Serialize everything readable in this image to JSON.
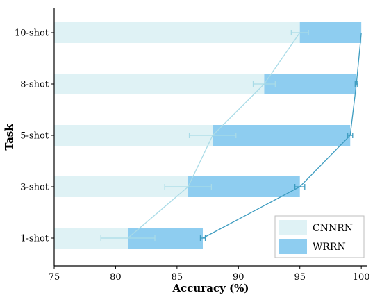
{
  "chart_data": {
    "type": "bar",
    "orientation": "horizontal",
    "xlabel": "Accuracy (%)",
    "ylabel": "Task",
    "xlim": [
      75,
      100.5
    ],
    "xticks": [
      "75",
      "80",
      "85",
      "90",
      "95",
      "100"
    ],
    "categories": [
      "1-shot",
      "3-shot",
      "5-shot",
      "8-shot",
      "10-shot"
    ],
    "series": [
      {
        "name": "CNNRN",
        "color": "#dff2f5",
        "line_color": "#a9dbe7",
        "values": [
          81.0,
          85.9,
          87.9,
          92.1,
          95.0
        ],
        "error": [
          2.2,
          1.9,
          1.9,
          0.9,
          0.7
        ]
      },
      {
        "name": "WRRN",
        "color": "#8ecdf0",
        "line_color": "#3d9cc0",
        "values": [
          87.1,
          95.0,
          99.1,
          99.6,
          100.0
        ],
        "error": [
          0.2,
          0.4,
          0.2,
          0.1,
          0.0
        ]
      }
    ],
    "legend_position": "lower-right",
    "grid": false
  }
}
